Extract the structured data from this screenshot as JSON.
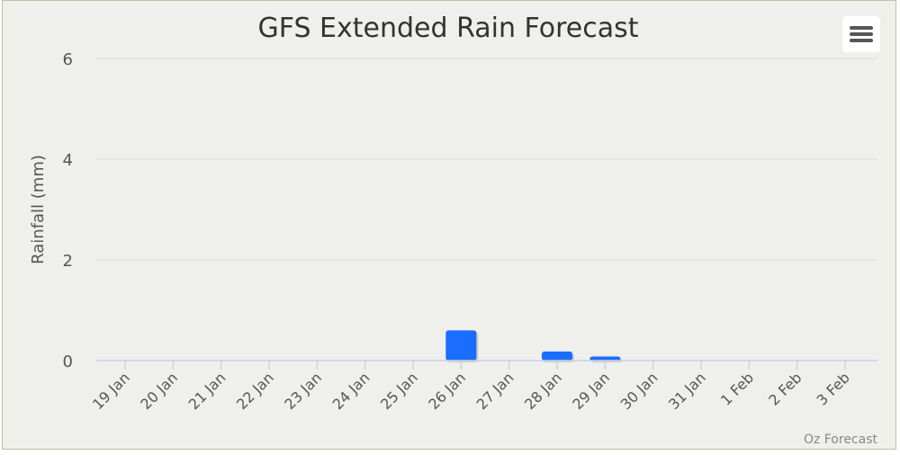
{
  "chart_data": {
    "type": "bar",
    "title": "GFS Extended Rain Forecast",
    "ylabel": "Rainfall (mm)",
    "xlabel": "",
    "credit": "Oz Forecast",
    "ylim": [
      0,
      6
    ],
    "yticks": [
      0,
      2,
      4,
      6
    ],
    "grid": true,
    "legend": "none",
    "categories": [
      "19 Jan",
      "20 Jan",
      "21 Jan",
      "22 Jan",
      "23 Jan",
      "24 Jan",
      "25 Jan",
      "26 Jan",
      "27 Jan",
      "28 Jan",
      "29 Jan",
      "30 Jan",
      "31 Jan",
      "1 Feb",
      "2 Feb",
      "3 Feb"
    ],
    "values": [
      0,
      0,
      0,
      0,
      0,
      0,
      0,
      0.6,
      0,
      0.18,
      0.08,
      0,
      0,
      0,
      0,
      0
    ],
    "bar_color": "#1a6dff"
  },
  "menu": {
    "icon": "hamburger-menu-icon"
  }
}
